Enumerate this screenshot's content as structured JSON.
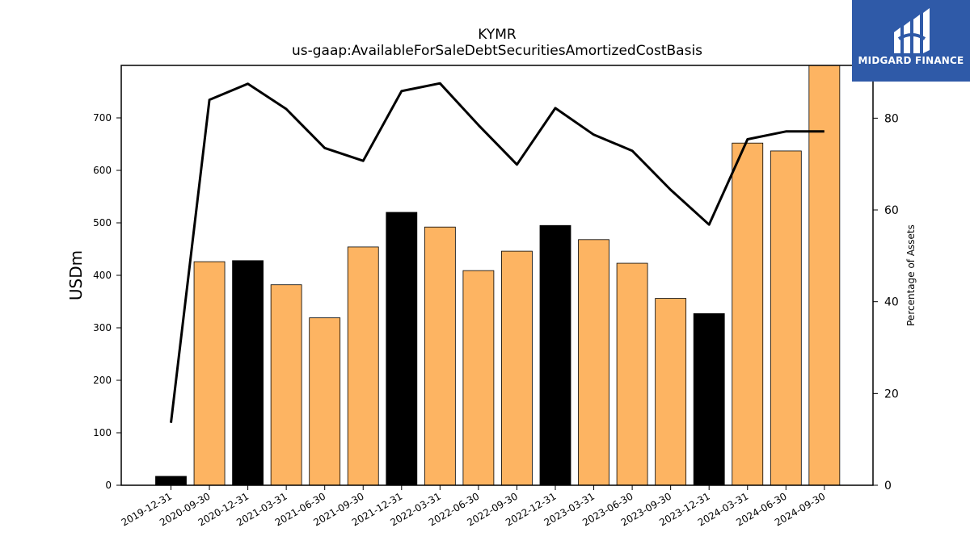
{
  "chart_data": {
    "type": "bar",
    "title": "KYMR",
    "subtitle": "us-gaap:AvailableForSaleDebtSecuritiesAmortizedCostBasis",
    "ylabel": "USDm",
    "y2label": "Percentage of Assets",
    "ylim": [
      0,
      800
    ],
    "y2lim": [
      0,
      91.5
    ],
    "yticks": [
      0,
      100,
      200,
      300,
      400,
      500,
      600,
      700
    ],
    "y2ticks": [
      0,
      20,
      40,
      60,
      80
    ],
    "categories": [
      "2019-12-31",
      "2020-09-30",
      "2020-12-31",
      "2021-03-31",
      "2021-06-30",
      "2021-09-30",
      "2021-12-31",
      "2022-03-31",
      "2022-06-30",
      "2022-09-30",
      "2022-12-31",
      "2023-03-31",
      "2023-06-30",
      "2023-09-30",
      "2023-12-31",
      "2024-03-31",
      "2024-06-30",
      "2024-09-30"
    ],
    "values": [
      17,
      426,
      428,
      382,
      319,
      454,
      520,
      492,
      409,
      446,
      495,
      468,
      423,
      356,
      327,
      652,
      637,
      800
    ],
    "bar_colors": [
      "#000000",
      "#fdb462",
      "#000000",
      "#fdb462",
      "#fdb462",
      "#fdb462",
      "#000000",
      "#fdb462",
      "#fdb462",
      "#fdb462",
      "#000000",
      "#fdb462",
      "#fdb462",
      "#fdb462",
      "#000000",
      "#fdb462",
      "#fdb462",
      "#fdb462"
    ],
    "line_values": [
      13.6,
      84.0,
      87.5,
      82.0,
      73.5,
      70.7,
      85.9,
      87.6,
      78.5,
      69.9,
      82.2,
      76.4,
      72.9,
      64.4,
      56.8,
      75.4,
      77.1,
      77.1
    ],
    "line_color": "#000000",
    "grid": false
  },
  "logo": {
    "text": "MIDGARD FINANCE",
    "background": "#2f5aa8"
  }
}
